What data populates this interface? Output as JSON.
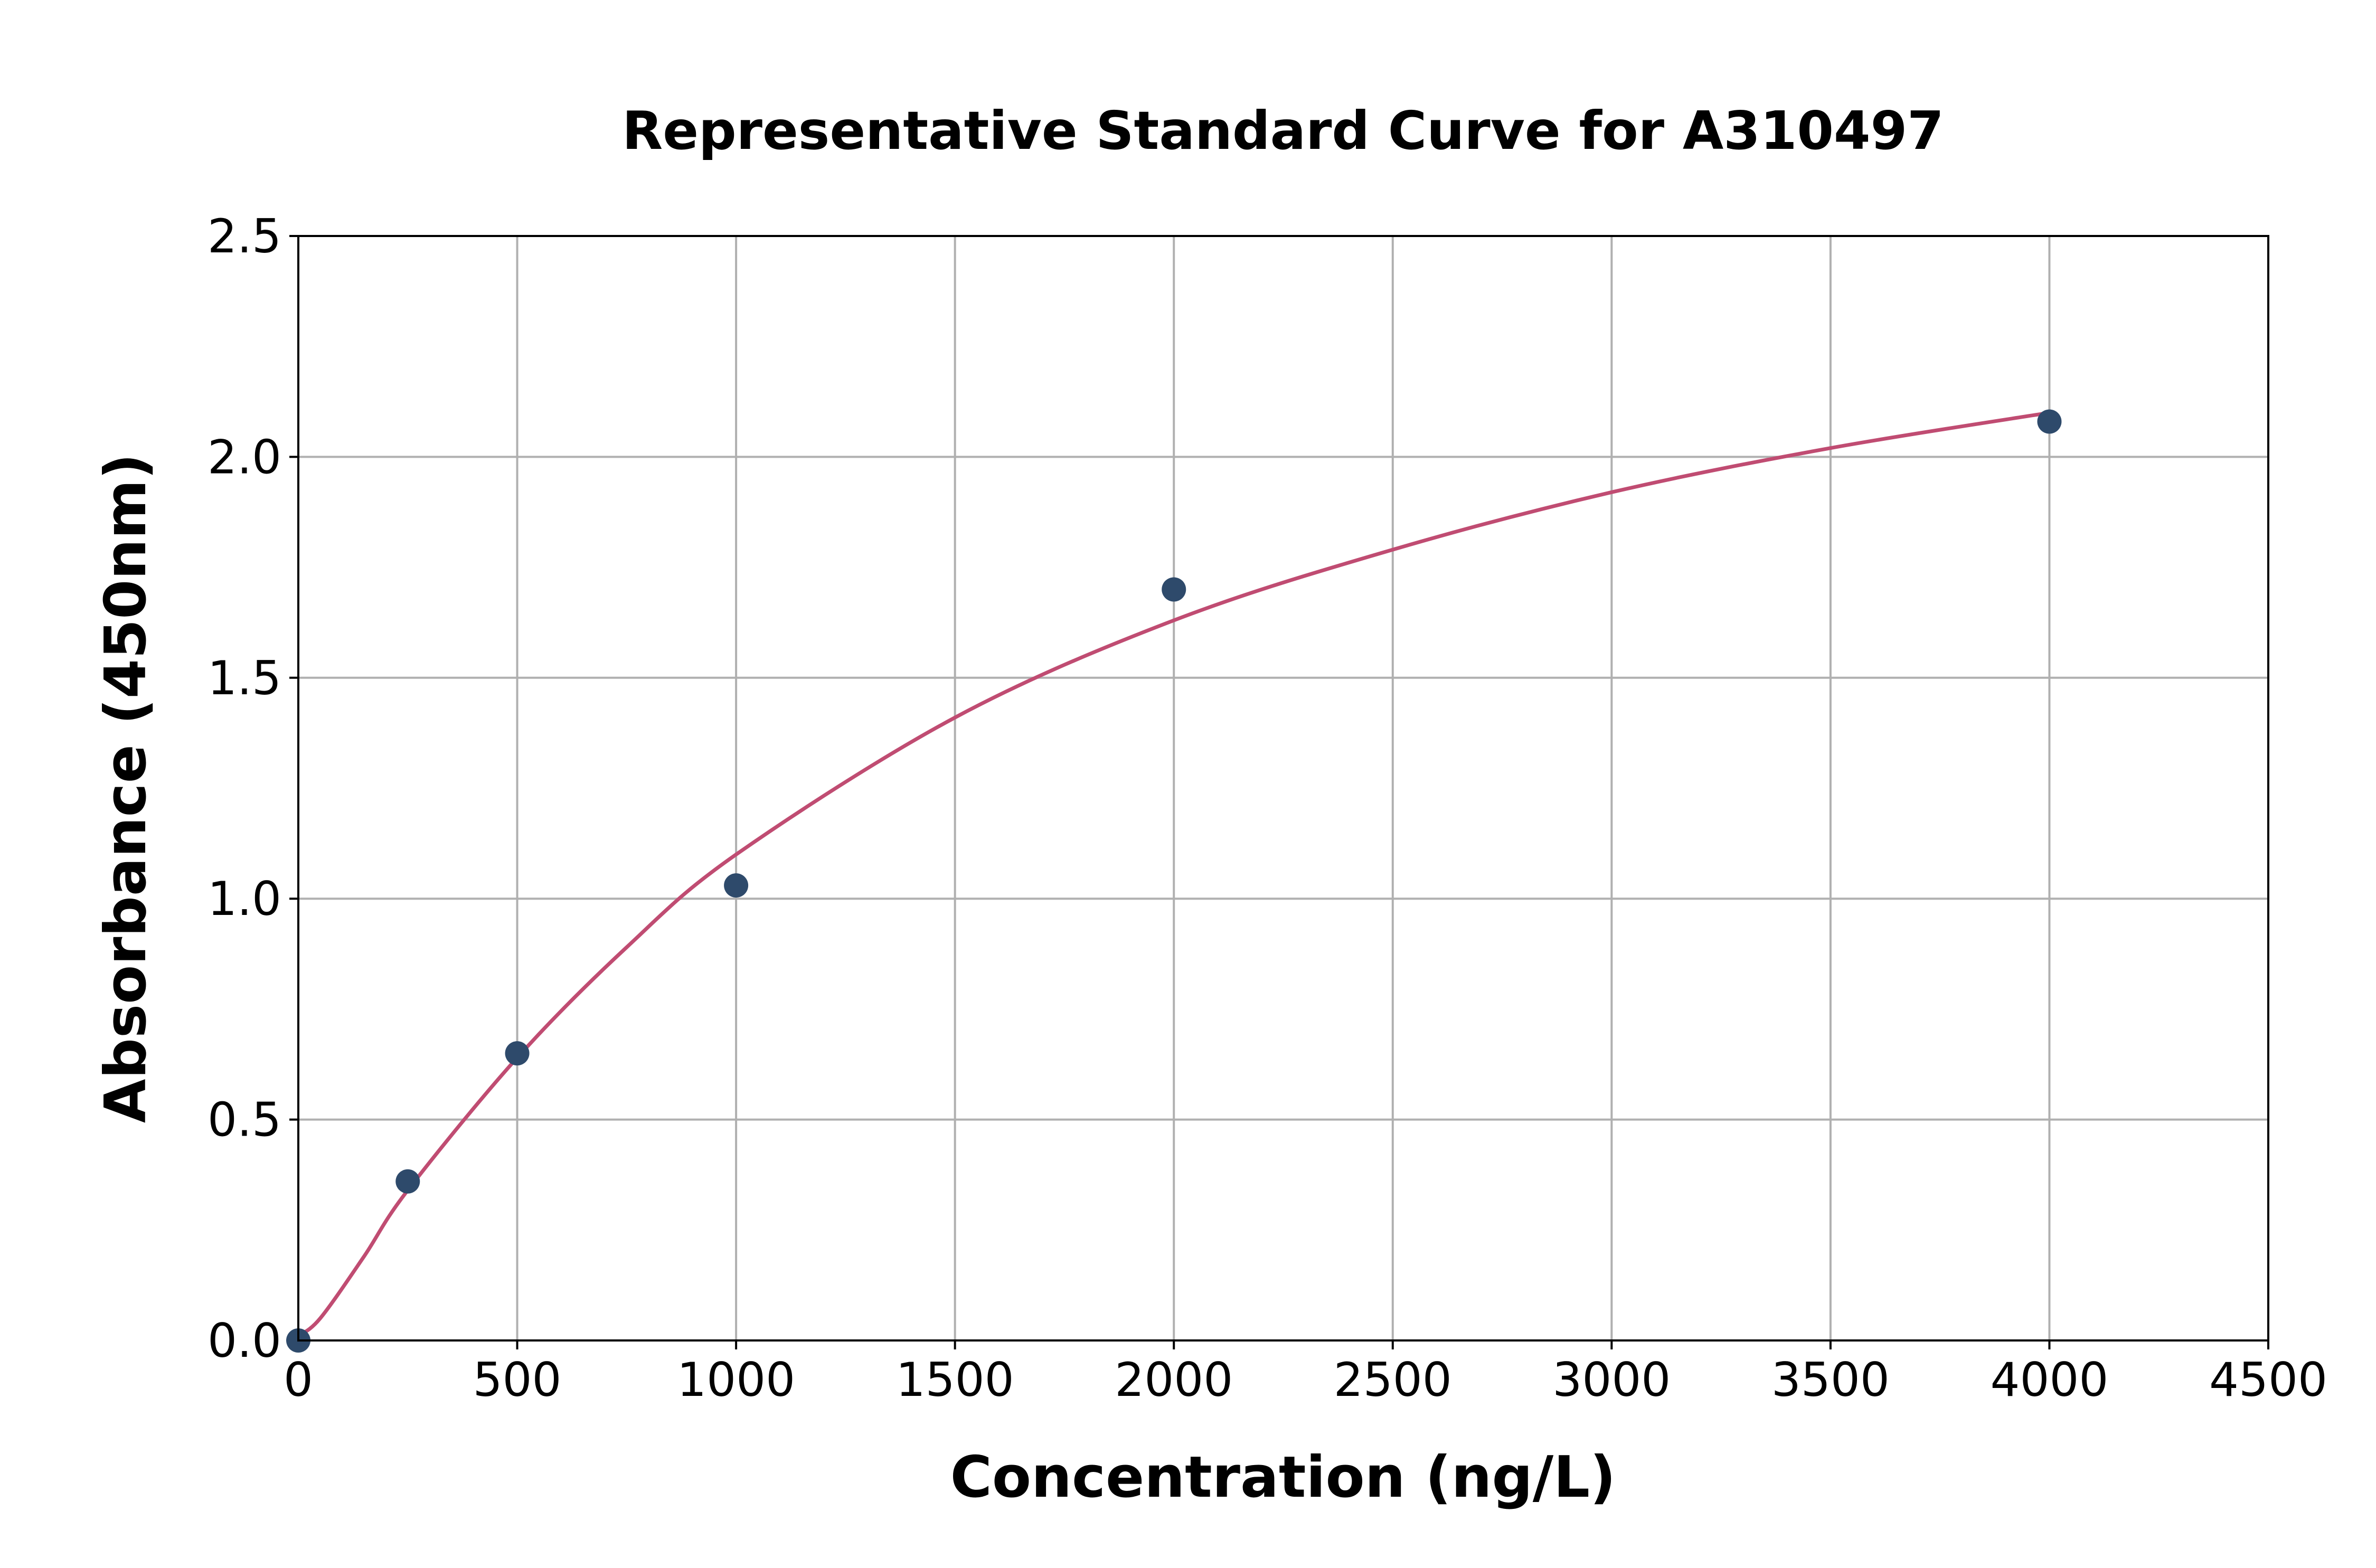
{
  "chart_data": {
    "type": "scatter",
    "title": "Representative Standard Curve for A310497",
    "xlabel": "Concentration (ng/L)",
    "ylabel": "Absorbance (450nm)",
    "xlim": [
      0,
      4500
    ],
    "ylim": [
      0,
      2.5
    ],
    "xticks": [
      "0",
      "500",
      "1000",
      "1500",
      "2000",
      "2500",
      "3000",
      "3500",
      "4000",
      "4500"
    ],
    "yticks": [
      "0.0",
      "0.5",
      "1.0",
      "1.5",
      "2.0",
      "2.5"
    ],
    "grid": true,
    "points": {
      "x": [
        0,
        250,
        500,
        1000,
        2000,
        4000
      ],
      "y": [
        0.0,
        0.36,
        0.65,
        1.03,
        1.7,
        2.08
      ],
      "color": "#2e4a6b"
    },
    "fit_curve": {
      "x": [
        0,
        50,
        150,
        250,
        500,
        750,
        1000,
        1500,
        2000,
        2500,
        3000,
        3500,
        4000
      ],
      "y": [
        0.01,
        0.05,
        0.19,
        0.34,
        0.64,
        0.89,
        1.1,
        1.41,
        1.63,
        1.79,
        1.92,
        2.02,
        2.1
      ],
      "color": "#c04c72"
    }
  }
}
